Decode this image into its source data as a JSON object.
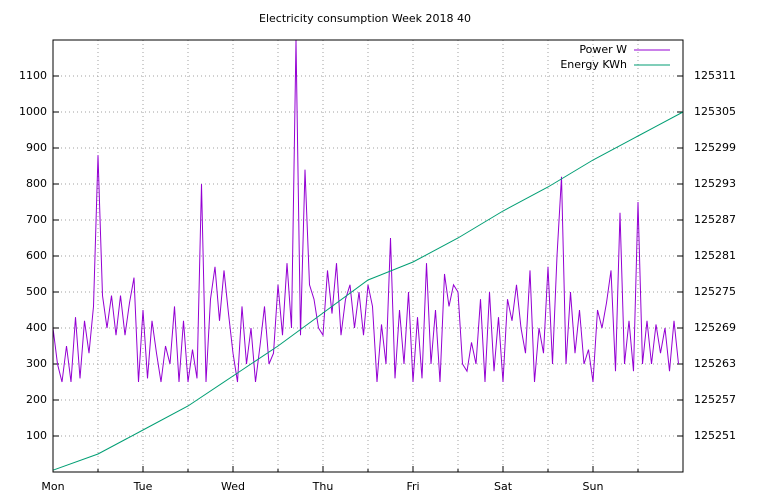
{
  "chart_data": {
    "type": "line",
    "title": "Electricity consumption Week 2018 40",
    "x": [
      0,
      0.05,
      0.1,
      0.15,
      0.2,
      0.25,
      0.3,
      0.35,
      0.4,
      0.45,
      0.5,
      0.55,
      0.6,
      0.65,
      0.7,
      0.75,
      0.8,
      0.85,
      0.9,
      0.95,
      1,
      1.05,
      1.1,
      1.15,
      1.2,
      1.25,
      1.3,
      1.35,
      1.4,
      1.45,
      1.5,
      1.55,
      1.6,
      1.65,
      1.7,
      1.75,
      1.8,
      1.85,
      1.9,
      1.95,
      2,
      2.05,
      2.1,
      2.15,
      2.2,
      2.25,
      2.3,
      2.35,
      2.4,
      2.45,
      2.5,
      2.55,
      2.6,
      2.65,
      2.7,
      2.75,
      2.8,
      2.85,
      2.9,
      2.95,
      3,
      3.05,
      3.1,
      3.15,
      3.2,
      3.25,
      3.3,
      3.35,
      3.4,
      3.45,
      3.5,
      3.55,
      3.6,
      3.65,
      3.7,
      3.75,
      3.8,
      3.85,
      3.9,
      3.95,
      4,
      4.05,
      4.1,
      4.15,
      4.2,
      4.25,
      4.3,
      4.35,
      4.4,
      4.45,
      4.5,
      4.55,
      4.6,
      4.65,
      4.7,
      4.75,
      4.8,
      4.85,
      4.9,
      4.95,
      5,
      5.05,
      5.1,
      5.15,
      5.2,
      5.25,
      5.3,
      5.35,
      5.4,
      5.45,
      5.5,
      5.55,
      5.6,
      5.65,
      5.7,
      5.75,
      5.8,
      5.85,
      5.9,
      5.95,
      6,
      6.05,
      6.1,
      6.15,
      6.2,
      6.25,
      6.3,
      6.35,
      6.4,
      6.45,
      6.5,
      6.55,
      6.6,
      6.65,
      6.7,
      6.75,
      6.8,
      6.85,
      6.9,
      6.95
    ],
    "series": [
      {
        "name": "Power W",
        "color": "#9400d3",
        "axis": "y",
        "values": [
          400,
          300,
          250,
          350,
          250,
          430,
          260,
          420,
          330,
          460,
          880,
          490,
          400,
          490,
          380,
          490,
          380,
          470,
          540,
          250,
          450,
          260,
          420,
          330,
          250,
          350,
          300,
          460,
          250,
          420,
          250,
          340,
          260,
          800,
          250,
          480,
          570,
          420,
          560,
          440,
          330,
          250,
          460,
          300,
          400,
          250,
          350,
          460,
          300,
          330,
          520,
          380,
          580,
          400,
          1200,
          380,
          840,
          520,
          480,
          400,
          380,
          560,
          440,
          580,
          380,
          480,
          520,
          400,
          500,
          380,
          520,
          460,
          250,
          410,
          300,
          650,
          260,
          450,
          300,
          500,
          250,
          430,
          260,
          580,
          300,
          450,
          250,
          550,
          460,
          520,
          500,
          300,
          280,
          360,
          300,
          480,
          250,
          500,
          280,
          430,
          250,
          480,
          420,
          520,
          400,
          330,
          560,
          250,
          400,
          330,
          570,
          300,
          600,
          820,
          300,
          500,
          330,
          450,
          300,
          340,
          250,
          450,
          400,
          470,
          560,
          280,
          720,
          300,
          420,
          280,
          750,
          300,
          420,
          300,
          410,
          330,
          400,
          280,
          420,
          300
        ]
      },
      {
        "name": "Energy KWh",
        "color": "#009e73",
        "axis": "y2",
        "x": [
          0,
          0.5,
          1,
          1.5,
          2,
          2.5,
          3,
          3.5,
          4,
          4.5,
          5,
          5.5,
          6,
          6.5,
          7
        ],
        "values": [
          125245.3,
          125248,
          125252,
          125256,
          125261,
          125266,
          125271.5,
          125277,
          125280,
          125284,
          125288.5,
          125292.5,
          125297,
          125301,
          125305
        ]
      }
    ],
    "xlim": [
      0,
      7
    ],
    "xticks": [
      {
        "value": 0,
        "label": "Mon"
      },
      {
        "value": 1,
        "label": "Tue"
      },
      {
        "value": 2,
        "label": "Wed"
      },
      {
        "value": 3,
        "label": "Thu"
      },
      {
        "value": 4,
        "label": "Fri"
      },
      {
        "value": 5,
        "label": "Sat"
      },
      {
        "value": 6,
        "label": "Sun"
      }
    ],
    "xminorticks": [
      0.5,
      1.5,
      2.5,
      3.5,
      4.5,
      5.5,
      6.5
    ],
    "ylim": [
      0,
      1200
    ],
    "yticks": [
      100,
      200,
      300,
      400,
      500,
      600,
      700,
      800,
      900,
      1000,
      1100
    ],
    "y2lim": [
      125245,
      125317
    ],
    "y2ticks": [
      125251,
      125257,
      125263,
      125269,
      125275,
      125281,
      125287,
      125293,
      125299,
      125305,
      125311
    ],
    "grid": true,
    "legend": "top-right"
  }
}
